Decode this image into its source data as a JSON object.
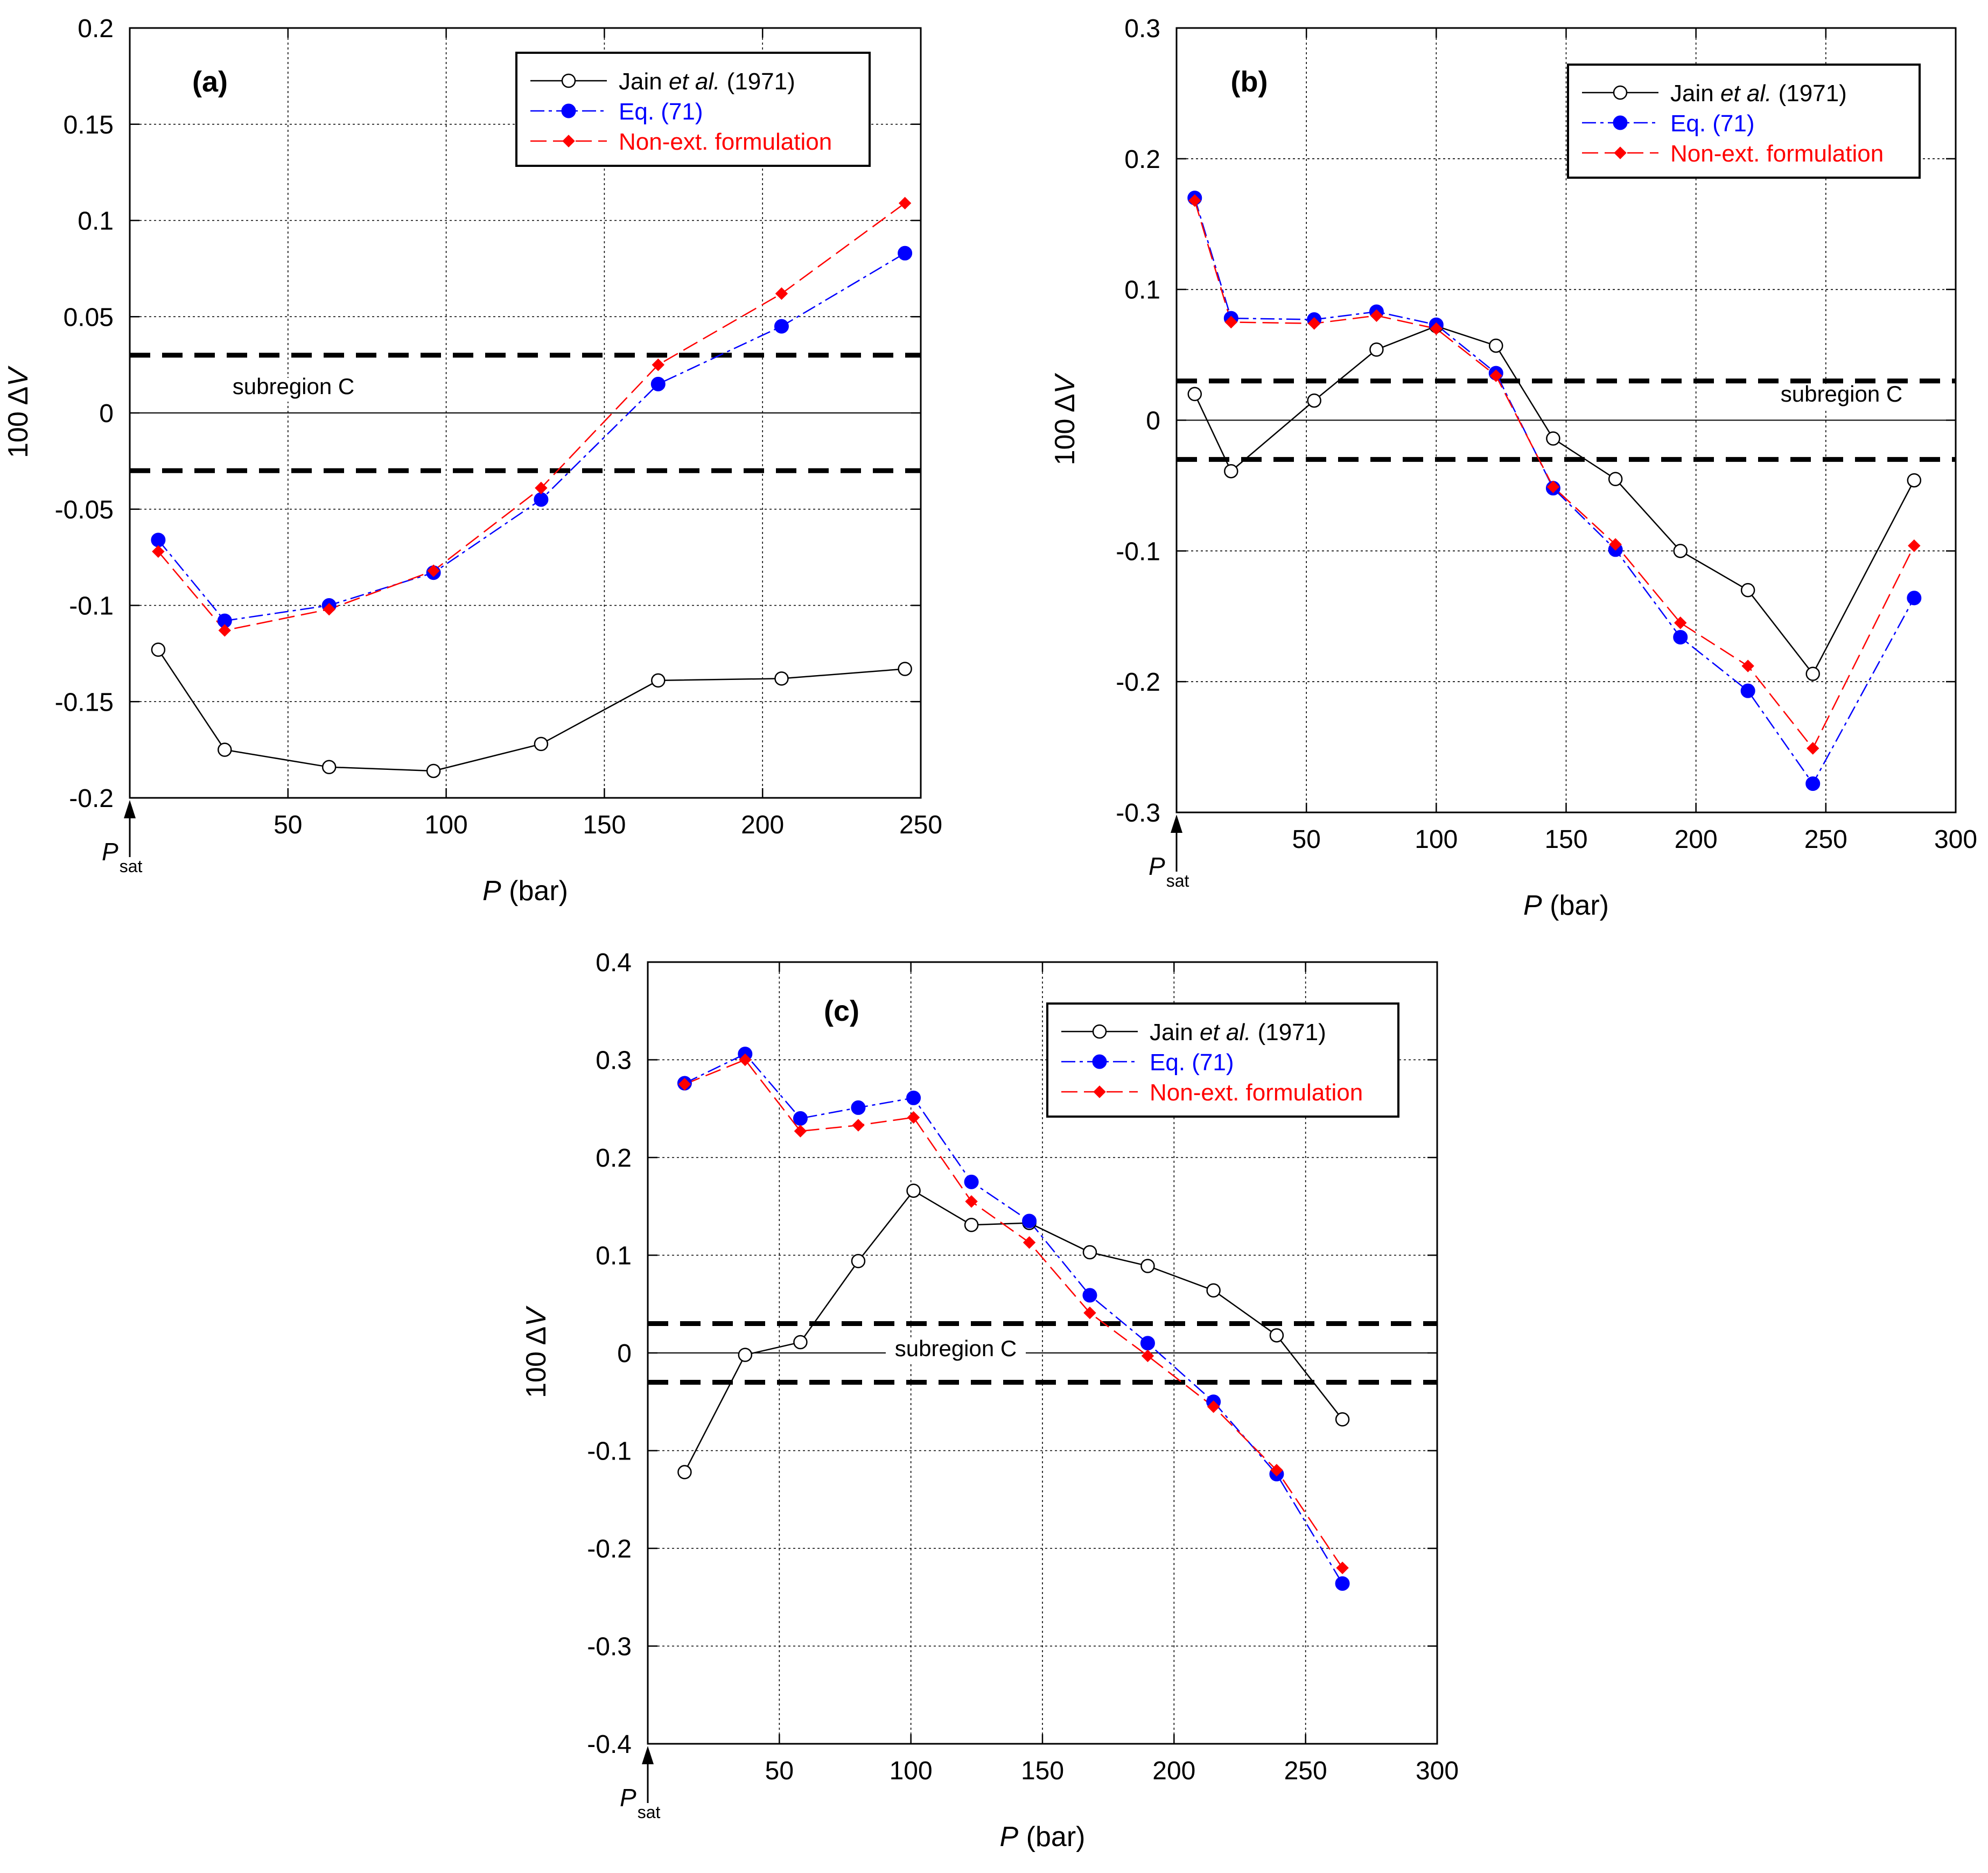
{
  "figure": {
    "psat_label": "P",
    "psat_sub": "sat"
  },
  "colors": {
    "jain": "#000000",
    "eq71": "#0000ff",
    "nonext": "#ff0000",
    "band": "#000000"
  },
  "chart_data": [
    {
      "id": "a",
      "type": "line",
      "panel_label": "(a)",
      "xlabel": "P (bar)",
      "ylabel": "100 ΔV",
      "xlim": [
        0,
        250
      ],
      "ylim": [
        -0.2,
        0.2
      ],
      "xticks": [
        50,
        100,
        150,
        200,
        250
      ],
      "xtick_labels": [
        "50",
        "100",
        "150",
        "200",
        "250"
      ],
      "yticks": [
        -0.2,
        -0.15,
        -0.1,
        -0.05,
        0,
        0.05,
        0.1,
        0.15,
        0.2
      ],
      "ytick_labels": [
        "-0.2",
        "-0.15",
        "-0.1",
        "-0.05",
        "0",
        "0.05",
        "0.1",
        "0.15",
        "0.2"
      ],
      "grid": true,
      "legend": "top-right",
      "band": {
        "label": "subregion C",
        "upper": 0.03,
        "lower": -0.03
      },
      "series": [
        {
          "name": "Jain et al. (1971)",
          "marker": "open-circle",
          "x": [
            9,
            30,
            63,
            96,
            130,
            167,
            206,
            245
          ],
          "y": [
            -0.123,
            -0.175,
            -0.184,
            -0.186,
            -0.172,
            -0.139,
            -0.138,
            -0.133
          ]
        },
        {
          "name": "Eq. (71)",
          "marker": "filled-circle",
          "x": [
            9,
            30,
            63,
            96,
            130,
            167,
            206,
            245
          ],
          "y": [
            -0.066,
            -0.108,
            -0.1,
            -0.083,
            -0.045,
            0.015,
            0.045,
            0.083
          ]
        },
        {
          "name": "Non-ext. formulation",
          "marker": "diamond",
          "x": [
            9,
            30,
            63,
            96,
            130,
            167,
            206,
            245
          ],
          "y": [
            -0.072,
            -0.113,
            -0.102,
            -0.082,
            -0.039,
            0.025,
            0.062,
            0.109
          ]
        }
      ]
    },
    {
      "id": "b",
      "type": "line",
      "panel_label": "(b)",
      "xlabel": "P (bar)",
      "ylabel": "100 ΔV",
      "xlim": [
        0,
        300
      ],
      "ylim": [
        -0.3,
        0.3
      ],
      "xticks": [
        50,
        100,
        150,
        200,
        250,
        300
      ],
      "xtick_labels": [
        "50",
        "100",
        "150",
        "200",
        "250",
        "300"
      ],
      "yticks": [
        -0.3,
        -0.2,
        -0.1,
        0,
        0.1,
        0.2,
        0.3
      ],
      "ytick_labels": [
        "-0.3",
        "-0.2",
        "-0.1",
        "0",
        "0.1",
        "0.2",
        "0.3"
      ],
      "grid": true,
      "legend": "top-right",
      "band": {
        "label": "subregion C",
        "upper": 0.03,
        "lower": -0.03
      },
      "series": [
        {
          "name": "Jain et al. (1971)",
          "marker": "open-circle",
          "x": [
            7,
            21,
            53,
            77,
            100,
            123,
            145,
            169,
            194,
            220,
            245,
            284
          ],
          "y": [
            0.02,
            -0.039,
            0.015,
            0.054,
            0.072,
            0.057,
            -0.014,
            -0.045,
            -0.1,
            -0.13,
            -0.194,
            -0.046
          ]
        },
        {
          "name": "Eq. (71)",
          "marker": "filled-circle",
          "x": [
            7,
            21,
            53,
            77,
            100,
            123,
            145,
            169,
            194,
            220,
            245,
            284
          ],
          "y": [
            0.17,
            0.078,
            0.077,
            0.083,
            0.073,
            0.036,
            -0.052,
            -0.099,
            -0.166,
            -0.207,
            -0.278,
            -0.136
          ]
        },
        {
          "name": "Non-ext. formulation",
          "marker": "diamond",
          "x": [
            7,
            21,
            53,
            77,
            100,
            123,
            145,
            169,
            194,
            220,
            245,
            284
          ],
          "y": [
            0.168,
            0.075,
            0.074,
            0.08,
            0.07,
            0.034,
            -0.051,
            -0.095,
            -0.155,
            -0.188,
            -0.251,
            -0.096
          ]
        }
      ]
    },
    {
      "id": "c",
      "type": "line",
      "panel_label": "(c)",
      "xlabel": "P (bar)",
      "ylabel": "100 ΔV",
      "xlim": [
        0,
        300
      ],
      "ylim": [
        -0.4,
        0.4
      ],
      "xticks": [
        50,
        100,
        150,
        200,
        250,
        300
      ],
      "xtick_labels": [
        "50",
        "100",
        "150",
        "200",
        "250",
        "300"
      ],
      "yticks": [
        -0.4,
        -0.3,
        -0.2,
        -0.1,
        0,
        0.1,
        0.2,
        0.3,
        0.4
      ],
      "ytick_labels": [
        "-0.4",
        "-0.3",
        "-0.2",
        "-0.1",
        "0",
        "0.1",
        "0.2",
        "0.3",
        "0.4"
      ],
      "grid": true,
      "legend": "top-right",
      "band": {
        "label": "subregion C",
        "upper": 0.03,
        "lower": -0.03
      },
      "series": [
        {
          "name": "Jain et al. (1971)",
          "marker": "open-circle",
          "x": [
            14,
            37,
            58,
            80,
            101,
            123,
            145,
            168,
            190,
            215,
            239,
            264
          ],
          "y": [
            -0.122,
            -0.002,
            0.011,
            0.094,
            0.166,
            0.131,
            0.133,
            0.103,
            0.089,
            0.064,
            0.018,
            -0.068
          ]
        },
        {
          "name": "Eq. (71)",
          "marker": "filled-circle",
          "x": [
            14,
            37,
            58,
            80,
            101,
            123,
            145,
            168,
            190,
            215,
            239,
            264
          ],
          "y": [
            0.276,
            0.306,
            0.24,
            0.251,
            0.261,
            0.175,
            0.135,
            0.059,
            0.01,
            -0.05,
            -0.124,
            -0.236
          ]
        },
        {
          "name": "Non-ext. formulation",
          "marker": "diamond",
          "x": [
            14,
            37,
            58,
            80,
            101,
            123,
            145,
            168,
            190,
            215,
            239,
            264
          ],
          "y": [
            0.275,
            0.3,
            0.227,
            0.233,
            0.241,
            0.155,
            0.113,
            0.041,
            -0.003,
            -0.055,
            -0.12,
            -0.22
          ]
        }
      ]
    }
  ]
}
